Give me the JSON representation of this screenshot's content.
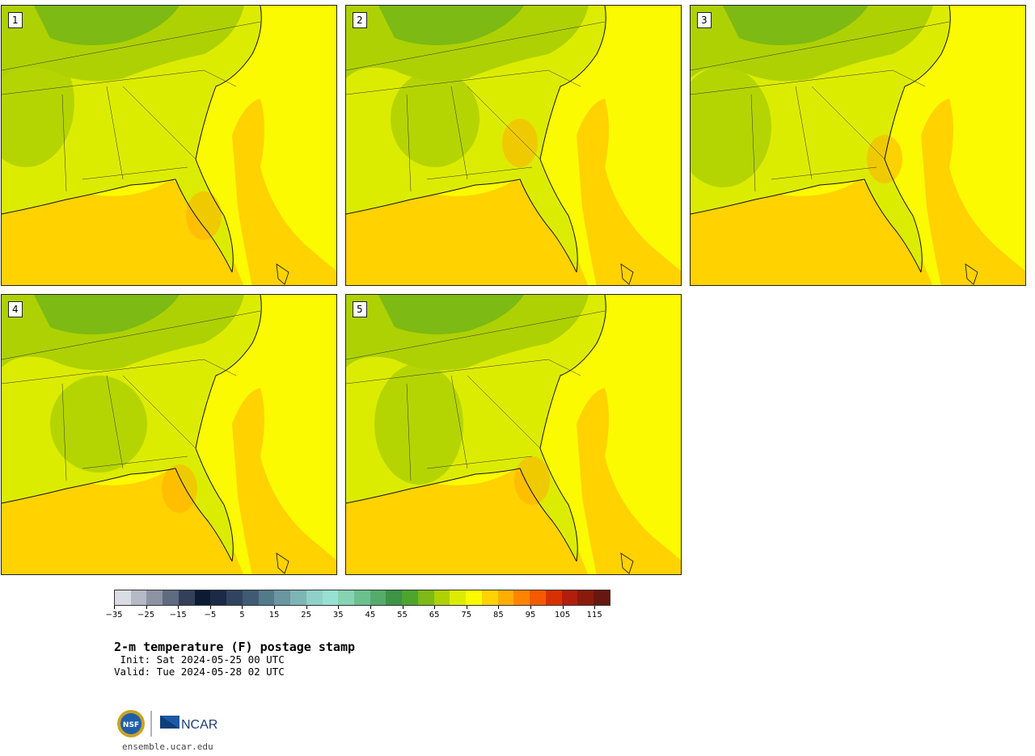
{
  "panels": [
    {
      "label": "1"
    },
    {
      "label": "2"
    },
    {
      "label": "3"
    },
    {
      "label": "4"
    },
    {
      "label": "5"
    }
  ],
  "colorbar": {
    "colors": [
      "#d9dde3",
      "#b5b9c6",
      "#8c93a3",
      "#5f6b80",
      "#34405a",
      "#0d1a33",
      "#1b2a46",
      "#2e4460",
      "#3f5b74",
      "#537a89",
      "#6a96a0",
      "#7db5b5",
      "#8fd0c8",
      "#97e0d2",
      "#85d3b0",
      "#6cc08e",
      "#55ab6c",
      "#3c9444",
      "#4ea52c",
      "#7dba14",
      "#aed103",
      "#dcec00",
      "#fcfa00",
      "#ffd200",
      "#ffae00",
      "#ff8400",
      "#f55a00",
      "#d83000",
      "#b01e0c",
      "#8a1a0c",
      "#661810"
    ],
    "ticks": [
      "−35",
      "−25",
      "−15",
      "−5",
      "5",
      "15",
      "25",
      "35",
      "45",
      "55",
      "65",
      "75",
      "85",
      "95",
      "105",
      "115"
    ]
  },
  "title": "2-m temperature (F) postage stamp",
  "init_line": " Init: Sat 2024-05-25 00 UTC",
  "valid_line": "Valid: Tue 2024-05-28 02 UTC",
  "logo": {
    "nsf": "NSF",
    "ncar": "NCAR"
  },
  "site": "ensemble.ucar.edu"
}
